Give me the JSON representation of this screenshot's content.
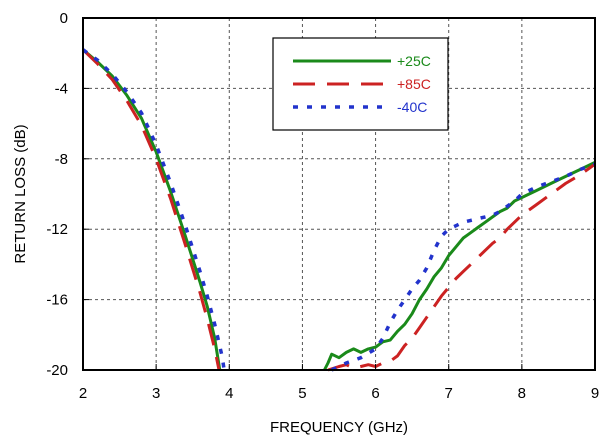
{
  "chart_data": {
    "type": "line",
    "xlabel": "FREQUENCY (GHz)",
    "ylabel": "RETURN LOSS (dB)",
    "xlim": [
      2,
      9
    ],
    "ylim": [
      -20,
      0
    ],
    "xticks": [
      "2",
      "3",
      "4",
      "5",
      "6",
      "7",
      "8",
      "9"
    ],
    "yticks": [
      "0",
      "-4",
      "-8",
      "-12",
      "-16",
      "-20"
    ],
    "grid": true,
    "legend_position": "top-right",
    "series": [
      {
        "name": "+25C",
        "color": "#1a8a1a",
        "style": "solid",
        "points": [
          [
            2.0,
            -1.8
          ],
          [
            2.2,
            -2.5
          ],
          [
            2.4,
            -3.3
          ],
          [
            2.6,
            -4.4
          ],
          [
            2.8,
            -5.7
          ],
          [
            3.0,
            -7.6
          ],
          [
            3.2,
            -9.9
          ],
          [
            3.4,
            -12.4
          ],
          [
            3.6,
            -15.0
          ],
          [
            3.7,
            -16.4
          ],
          [
            3.8,
            -18.2
          ],
          [
            3.87,
            -20.0
          ],
          null,
          [
            5.3,
            -20.0
          ],
          [
            5.35,
            -19.6
          ],
          [
            5.4,
            -19.1
          ],
          [
            5.5,
            -19.3
          ],
          [
            5.6,
            -19.0
          ],
          [
            5.7,
            -18.8
          ],
          [
            5.8,
            -19.0
          ],
          [
            5.9,
            -18.8
          ],
          [
            6.0,
            -18.7
          ],
          [
            6.1,
            -18.4
          ],
          [
            6.2,
            -18.3
          ],
          [
            6.3,
            -17.8
          ],
          [
            6.4,
            -17.4
          ],
          [
            6.5,
            -16.8
          ],
          [
            6.6,
            -16.0
          ],
          [
            6.7,
            -15.4
          ],
          [
            6.8,
            -14.7
          ],
          [
            6.9,
            -14.2
          ],
          [
            7.0,
            -13.5
          ],
          [
            7.1,
            -13.0
          ],
          [
            7.2,
            -12.5
          ],
          [
            7.3,
            -12.2
          ],
          [
            7.4,
            -11.9
          ],
          [
            7.5,
            -11.6
          ],
          [
            7.6,
            -11.3
          ],
          [
            7.7,
            -11.0
          ],
          [
            7.8,
            -10.8
          ],
          [
            7.9,
            -10.4
          ],
          [
            8.0,
            -10.2
          ],
          [
            8.2,
            -9.8
          ],
          [
            8.4,
            -9.4
          ],
          [
            8.6,
            -9.0
          ],
          [
            8.8,
            -8.6
          ],
          [
            9.0,
            -8.2
          ]
        ]
      },
      {
        "name": "+85C",
        "color": "#cc2222",
        "style": "dashed",
        "points": [
          [
            2.0,
            -1.8
          ],
          [
            2.2,
            -2.6
          ],
          [
            2.4,
            -3.5
          ],
          [
            2.6,
            -4.7
          ],
          [
            2.8,
            -6.1
          ],
          [
            3.0,
            -8.0
          ],
          [
            3.2,
            -10.3
          ],
          [
            3.4,
            -12.9
          ],
          [
            3.6,
            -15.6
          ],
          [
            3.7,
            -17.1
          ],
          [
            3.8,
            -18.8
          ],
          [
            3.86,
            -20.0
          ],
          null,
          [
            5.35,
            -20.0
          ],
          [
            5.5,
            -19.8
          ],
          [
            5.6,
            -19.7
          ],
          [
            5.7,
            -19.9
          ],
          [
            5.8,
            -19.8
          ],
          [
            5.9,
            -19.7
          ],
          [
            6.0,
            -19.8
          ],
          [
            6.1,
            -19.6
          ],
          [
            6.2,
            -19.5
          ],
          [
            6.3,
            -19.2
          ],
          [
            6.4,
            -18.6
          ],
          [
            6.5,
            -18.2
          ],
          [
            6.6,
            -17.6
          ],
          [
            6.7,
            -17.0
          ],
          [
            6.8,
            -16.4
          ],
          [
            6.9,
            -15.8
          ],
          [
            7.0,
            -15.3
          ],
          [
            7.1,
            -14.8
          ],
          [
            7.2,
            -14.4
          ],
          [
            7.3,
            -14.0
          ],
          [
            7.4,
            -13.6
          ],
          [
            7.5,
            -13.2
          ],
          [
            7.6,
            -12.8
          ],
          [
            7.7,
            -12.5
          ],
          [
            7.8,
            -12.0
          ],
          [
            7.9,
            -11.6
          ],
          [
            8.0,
            -11.2
          ],
          [
            8.2,
            -10.6
          ],
          [
            8.4,
            -10.0
          ],
          [
            8.6,
            -9.4
          ],
          [
            8.8,
            -8.9
          ],
          [
            9.0,
            -8.3
          ]
        ]
      },
      {
        "name": "-40C",
        "color": "#2233cc",
        "style": "dotted",
        "points": [
          [
            2.0,
            -1.8
          ],
          [
            2.2,
            -2.4
          ],
          [
            2.4,
            -3.2
          ],
          [
            2.6,
            -4.2
          ],
          [
            2.8,
            -5.4
          ],
          [
            3.0,
            -7.2
          ],
          [
            3.2,
            -9.4
          ],
          [
            3.4,
            -11.8
          ],
          [
            3.6,
            -14.4
          ],
          [
            3.7,
            -15.8
          ],
          [
            3.8,
            -17.4
          ],
          [
            3.9,
            -19.2
          ],
          [
            3.93,
            -20.0
          ],
          null,
          [
            5.4,
            -20.0
          ],
          [
            5.6,
            -19.6
          ],
          [
            5.8,
            -19.3
          ],
          [
            6.0,
            -18.8
          ],
          [
            6.1,
            -18.2
          ],
          [
            6.2,
            -17.3
          ],
          [
            6.3,
            -16.6
          ],
          [
            6.4,
            -16.0
          ],
          [
            6.5,
            -15.4
          ],
          [
            6.6,
            -14.9
          ],
          [
            6.7,
            -14.2
          ],
          [
            6.8,
            -13.2
          ],
          [
            6.9,
            -12.4
          ],
          [
            7.0,
            -12.0
          ],
          [
            7.1,
            -11.8
          ],
          [
            7.2,
            -11.6
          ],
          [
            7.3,
            -11.5
          ],
          [
            7.4,
            -11.4
          ],
          [
            7.5,
            -11.3
          ],
          [
            7.6,
            -11.2
          ],
          [
            7.7,
            -11.0
          ],
          [
            7.8,
            -10.7
          ],
          [
            7.9,
            -10.4
          ],
          [
            8.0,
            -10.0
          ],
          [
            8.2,
            -9.6
          ],
          [
            8.4,
            -9.3
          ],
          [
            8.6,
            -9.0
          ],
          [
            8.8,
            -8.6
          ],
          [
            9.0,
            -8.3
          ]
        ]
      }
    ]
  }
}
